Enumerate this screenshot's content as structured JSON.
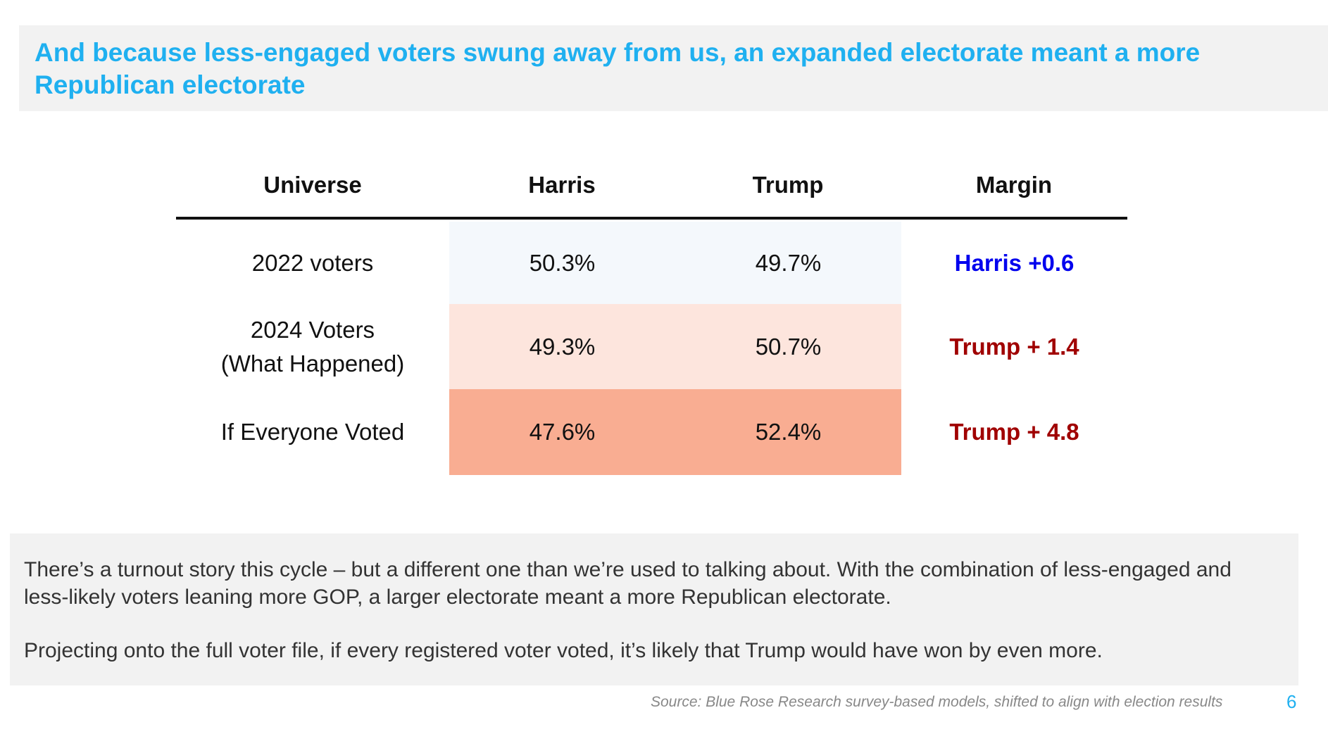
{
  "title": "And because less-engaged voters swung away from us, an expanded electorate meant a more Republican electorate",
  "table": {
    "headers": [
      "Universe",
      "Harris",
      "Trump",
      "Margin"
    ],
    "rows": [
      {
        "universe": "2022 voters",
        "harris": "50.3%",
        "trump": "49.7%",
        "margin": "Harris +0.6",
        "margin_color": "#0000ee",
        "shade": "#f4f8fc"
      },
      {
        "universe": "2024 Voters\n(What Happened)",
        "harris": "49.3%",
        "trump": "50.7%",
        "margin": "Trump + 1.4",
        "margin_color": "#a00000",
        "shade": "#fde5dd"
      },
      {
        "universe": "If Everyone Voted",
        "harris": "47.6%",
        "trump": "52.4%",
        "margin": "Trump + 4.8",
        "margin_color": "#a00000",
        "shade": "#f9ad92"
      }
    ]
  },
  "note": {
    "paragraph1": "There’s a turnout story this cycle – but a different one than we’re used to talking about. With the combination of less-engaged and less-likely voters leaning more GOP, a larger electorate meant a more Republican electorate.",
    "paragraph2": "Projecting onto the full voter file, if every registered voter voted, it’s likely that Trump would have won by even more."
  },
  "source": "Source: Blue Rose Research survey-based models, shifted to align with election results",
  "page_number": "6"
}
